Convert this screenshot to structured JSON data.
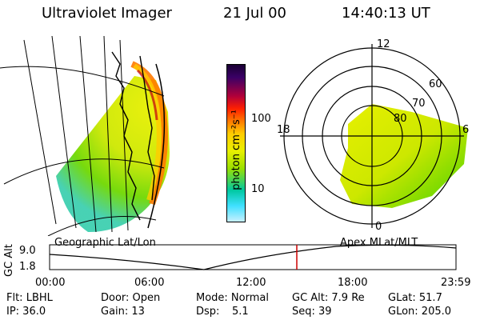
{
  "header": {
    "title": "Ultraviolet Imager",
    "date": "21 Jul 00",
    "time": "14:40:13 UT"
  },
  "colorbar": {
    "label": "photon cm⁻²s⁻¹",
    "ticks": [
      "100",
      "10"
    ],
    "colors": [
      "#1a0033",
      "#3a0066",
      "#b0003a",
      "#ff2000",
      "#ff7a00",
      "#ffcc00",
      "#e8f000",
      "#9be000",
      "#00c8a0",
      "#40e0ff",
      "#c8f0ff"
    ]
  },
  "polar_plot": {
    "labels": {
      "top": "12",
      "left": "18",
      "right": "6",
      "bottom": "0"
    },
    "ring_labels": [
      "60",
      "70",
      "80"
    ]
  },
  "timeline": {
    "left_title": "Geographic Lat/Lon",
    "right_title": "Apex MLat/MLT",
    "axis_label": "GC Alt",
    "y_ticks": [
      "9.0",
      "1.8"
    ],
    "x_ticks": [
      "00:00",
      "06:00",
      "12:00",
      "18:00",
      "23:59"
    ],
    "current_marker_color": "#cc0000"
  },
  "info": {
    "flt": "Flt: LBHL",
    "ip": "IP: 36.0",
    "door": "Door: Open",
    "gain": "Gain: 13",
    "mode": "Mode: Normal",
    "dsp_label": "Dsp:",
    "dsp_value": "5.1",
    "gcalt": "GC Alt: 7.9 Re",
    "seq": "Seq: 39",
    "glat": "GLat:  51.7",
    "glon": "GLon: 205.0"
  }
}
